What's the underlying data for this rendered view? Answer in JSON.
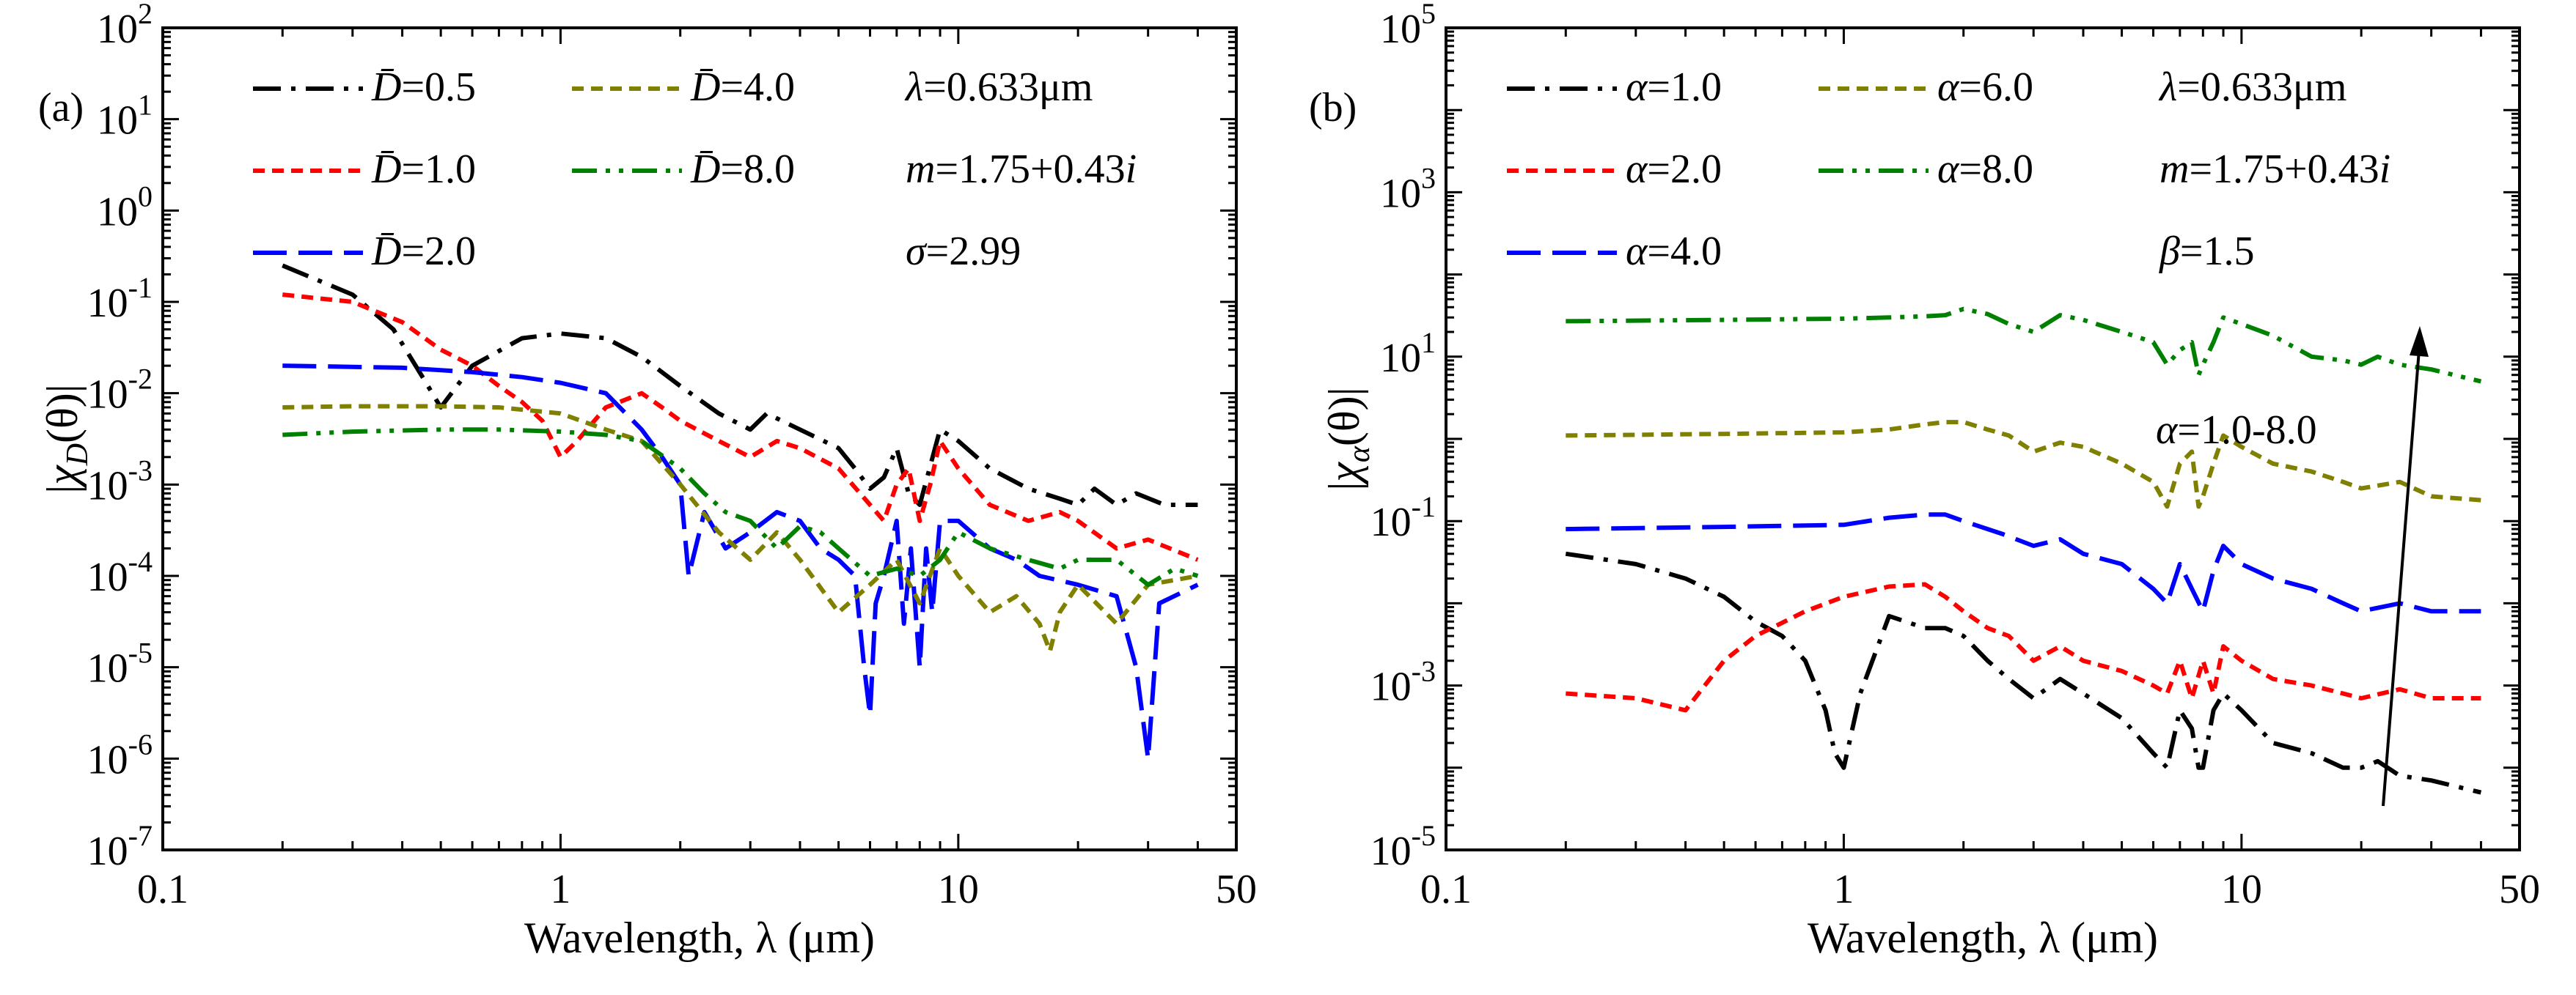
{
  "chart_data": [
    {
      "type": "line",
      "panel_label": "(a)",
      "xscale": "log",
      "yscale": "log",
      "xlim": [
        0.1,
        50
      ],
      "ylim": [
        1e-07,
        100
      ],
      "xticks": [
        0.1,
        1,
        10,
        50
      ],
      "xtick_labels": [
        "0.1",
        "1",
        "10",
        "50"
      ],
      "yticks": [
        1e-07,
        1e-06,
        1e-05,
        0.0001,
        0.001,
        0.01,
        0.1,
        1,
        10,
        100
      ],
      "ytick_exponents": [
        "-7",
        "-6",
        "-5",
        "-4",
        "-3",
        "-2",
        "-1",
        "0",
        "1",
        "2"
      ],
      "ytick_base": "10",
      "xlabel": "Wavelength, λ (μm)",
      "ylabel": {
        "bar_left": "|",
        "symbol": "χ",
        "subscript": "D",
        "arg": "(θ)",
        "bar_right": "|"
      },
      "legend": {
        "placement": "top-left",
        "columns": [
          [
            "D̄=0.5",
            "D̄=1.0",
            "D̄=2.0"
          ],
          [
            "D̄=4.0",
            "D̄=8.0"
          ]
        ]
      },
      "annotations": [
        "λ=0.633μm",
        "m=1.75+0.43i",
        "σ=2.99"
      ],
      "series": [
        {
          "name": "D̄=0.5",
          "color": "#000000",
          "dash": "dashdot",
          "x": [
            0.2,
            0.3,
            0.38,
            0.45,
            0.5,
            0.6,
            0.8,
            1.0,
            1.3,
            1.6,
            2.0,
            2.5,
            3.0,
            3.3,
            4.0,
            5.0,
            5.5,
            6.0,
            6.5,
            7.0,
            7.5,
            8.0,
            9.0,
            10.0,
            12,
            15,
            18,
            20,
            22,
            25,
            28,
            33,
            40
          ],
          "y": [
            0.25,
            0.12,
            0.05,
            0.015,
            0.007,
            0.02,
            0.04,
            0.045,
            0.04,
            0.025,
            0.012,
            0.006,
            0.004,
            0.006,
            0.004,
            0.0025,
            0.0015,
            0.0009,
            0.0012,
            0.0025,
            0.0008,
            0.0006,
            0.004,
            0.003,
            0.0015,
            0.0009,
            0.0007,
            0.0006,
            0.0009,
            0.0006,
            0.0008,
            0.0006,
            0.0006
          ]
        },
        {
          "name": "D̄=1.0",
          "color": "#ff0000",
          "dash": "dash",
          "x": [
            0.2,
            0.3,
            0.4,
            0.5,
            0.6,
            0.7,
            0.8,
            0.9,
            1.0,
            1.1,
            1.3,
            1.6,
            1.8,
            2.0,
            2.5,
            3.0,
            3.5,
            4.0,
            5.0,
            6.0,
            6.5,
            7.0,
            7.5,
            8.0,
            8.5,
            9.0,
            10.0,
            12,
            15,
            18,
            20,
            25,
            30,
            40
          ],
          "y": [
            0.12,
            0.1,
            0.06,
            0.03,
            0.02,
            0.012,
            0.008,
            0.005,
            0.002,
            0.003,
            0.007,
            0.01,
            0.007,
            0.005,
            0.003,
            0.002,
            0.003,
            0.0025,
            0.0015,
            0.0006,
            0.0004,
            0.001,
            0.0015,
            0.0004,
            0.001,
            0.003,
            0.0015,
            0.0006,
            0.0004,
            0.0005,
            0.0004,
            0.0002,
            0.00025,
            0.00015
          ]
        },
        {
          "name": "D̄=2.0",
          "color": "#0000ff",
          "dash": "longdash",
          "x": [
            0.2,
            0.4,
            0.6,
            0.8,
            1.0,
            1.3,
            1.6,
            1.8,
            2.0,
            2.1,
            2.3,
            2.6,
            3.0,
            3.5,
            4.0,
            4.5,
            5.0,
            5.5,
            5.8,
            6.0,
            6.2,
            6.5,
            7.0,
            7.3,
            7.6,
            8.0,
            8.3,
            8.6,
            9.0,
            10.0,
            12,
            14,
            16,
            20,
            25,
            28,
            30,
            32,
            40
          ],
          "y": [
            0.02,
            0.019,
            0.017,
            0.015,
            0.013,
            0.01,
            0.004,
            0.002,
            0.001,
            0.0001,
            0.0005,
            0.0002,
            0.0003,
            0.0005,
            0.0004,
            0.0002,
            0.00015,
            0.0001,
            1e-05,
            3e-06,
            5e-05,
            0.0001,
            0.0004,
            3e-05,
            0.0002,
            1e-05,
            0.0002,
            4e-05,
            0.0004,
            0.0004,
            0.0002,
            0.00015,
            0.0001,
            8e-05,
            6e-05,
            1e-05,
            1e-06,
            5e-05,
            8e-05
          ]
        },
        {
          "name": "D̄=4.0",
          "color": "#808000",
          "dash": "dash",
          "x": [
            0.2,
            0.3,
            0.5,
            0.7,
            1.0,
            1.3,
            1.6,
            2.0,
            2.5,
            3.0,
            3.5,
            4.0,
            5.0,
            6.0,
            7.0,
            8.0,
            9.0,
            10.0,
            12,
            14,
            16,
            17,
            18,
            20,
            25,
            30,
            40
          ],
          "y": [
            0.007,
            0.0072,
            0.0072,
            0.007,
            0.006,
            0.004,
            0.003,
            0.001,
            0.0003,
            0.00015,
            0.0003,
            0.00015,
            4e-05,
            8e-05,
            0.00015,
            5e-05,
            0.0002,
            0.0001,
            4e-05,
            6e-05,
            3e-05,
            1.5e-05,
            4e-05,
            8e-05,
            3e-05,
            8e-05,
            0.0001
          ]
        },
        {
          "name": "D̄=8.0",
          "color": "#008000",
          "dash": "dashdotdot",
          "x": [
            0.2,
            0.3,
            0.5,
            0.7,
            1.0,
            1.3,
            1.6,
            2.0,
            2.3,
            2.6,
            3.0,
            3.5,
            4.0,
            4.5,
            5.0,
            6.0,
            7.0,
            8.0,
            9.0,
            10.0,
            12,
            15,
            18,
            20,
            25,
            30,
            35,
            40
          ],
          "y": [
            0.0035,
            0.0038,
            0.004,
            0.004,
            0.0038,
            0.0035,
            0.003,
            0.0015,
            0.0008,
            0.0005,
            0.0004,
            0.0002,
            0.00035,
            0.0003,
            0.0002,
            0.0001,
            0.00012,
            0.0001,
            0.00015,
            0.0003,
            0.0002,
            0.00015,
            0.00012,
            0.00015,
            0.00015,
            8e-05,
            0.00012,
            0.0001
          ]
        }
      ]
    },
    {
      "type": "line",
      "panel_label": "(b)",
      "xscale": "log",
      "yscale": "log",
      "xlim": [
        0.1,
        50
      ],
      "ylim": [
        1e-05,
        100000
      ],
      "xticks": [
        0.1,
        1,
        10,
        50
      ],
      "xtick_labels": [
        "0.1",
        "1",
        "10",
        "50"
      ],
      "yticks": [
        1e-05,
        0.001,
        0.1,
        10,
        1000,
        100000
      ],
      "ytick_exponents": [
        "-5",
        "-3",
        "-1",
        "1",
        "3",
        "5"
      ],
      "ytick_base": "10",
      "xlabel": "Wavelength, λ (μm)",
      "ylabel": {
        "bar_left": "|",
        "symbol": "χ",
        "subscript": "α",
        "arg": "(θ)",
        "bar_right": "|"
      },
      "legend": {
        "placement": "top-left",
        "columns": [
          [
            "α=1.0",
            "α=2.0",
            "α=4.0"
          ],
          [
            "α=6.0",
            "α=8.0"
          ]
        ]
      },
      "annotations": [
        "λ=0.633μm",
        "m=1.75+0.43i",
        "β=1.5",
        "α=1.0-8.0"
      ],
      "series": [
        {
          "name": "α=1.0",
          "color": "#000000",
          "dash": "dashdot",
          "x": [
            0.2,
            0.3,
            0.4,
            0.5,
            0.6,
            0.7,
            0.8,
            0.9,
            0.95,
            1.0,
            1.1,
            1.3,
            1.6,
            1.8,
            2.0,
            2.3,
            2.6,
            3.0,
            3.5,
            4.0,
            5.0,
            6.0,
            6.5,
            7.0,
            7.5,
            7.8,
            8.0,
            8.5,
            9.0,
            10.0,
            12,
            15,
            18,
            20,
            22,
            25,
            30,
            40
          ],
          "y": [
            0.04,
            0.03,
            0.02,
            0.012,
            0.006,
            0.004,
            0.002,
            0.0005,
            0.00015,
            0.0001,
            0.0008,
            0.007,
            0.005,
            0.005,
            0.004,
            0.002,
            0.0012,
            0.0007,
            0.0012,
            0.0008,
            0.0004,
            0.00015,
            0.0001,
            0.0005,
            0.0003,
            0.0001,
            0.0001,
            0.0005,
            0.0008,
            0.0005,
            0.0002,
            0.00015,
            0.0001,
            0.0001,
            0.00012,
            8e-05,
            7e-05,
            5e-05
          ]
        },
        {
          "name": "α=2.0",
          "color": "#ff0000",
          "dash": "dash",
          "x": [
            0.2,
            0.3,
            0.4,
            0.5,
            0.6,
            0.8,
            1.0,
            1.3,
            1.6,
            1.8,
            2.0,
            2.3,
            2.6,
            3.0,
            3.5,
            4.0,
            5.0,
            6.0,
            6.5,
            7.0,
            7.5,
            8.0,
            8.5,
            9.0,
            10.0,
            12,
            15,
            18,
            20,
            25,
            30,
            40
          ],
          "y": [
            0.0008,
            0.0007,
            0.0005,
            0.002,
            0.004,
            0.008,
            0.012,
            0.016,
            0.017,
            0.012,
            0.008,
            0.005,
            0.004,
            0.002,
            0.003,
            0.002,
            0.0015,
            0.001,
            0.0008,
            0.002,
            0.0007,
            0.002,
            0.0008,
            0.003,
            0.002,
            0.0012,
            0.001,
            0.0008,
            0.0007,
            0.0009,
            0.0007,
            0.0007
          ]
        },
        {
          "name": "α=4.0",
          "color": "#0000ff",
          "dash": "longdash",
          "x": [
            0.2,
            0.5,
            1.0,
            1.3,
            1.6,
            1.8,
            2.0,
            2.5,
            3.0,
            3.5,
            4.0,
            5.0,
            6.0,
            6.5,
            7.0,
            7.5,
            8.0,
            8.5,
            9.0,
            10.0,
            12,
            15,
            18,
            20,
            25,
            30,
            40
          ],
          "y": [
            0.08,
            0.085,
            0.09,
            0.11,
            0.12,
            0.12,
            0.1,
            0.07,
            0.05,
            0.06,
            0.04,
            0.03,
            0.015,
            0.01,
            0.03,
            0.015,
            0.008,
            0.025,
            0.05,
            0.03,
            0.02,
            0.015,
            0.01,
            0.008,
            0.01,
            0.008,
            0.008
          ]
        },
        {
          "name": "α=6.0",
          "color": "#808000",
          "dash": "dash",
          "x": [
            0.2,
            0.5,
            1.0,
            1.3,
            1.6,
            1.8,
            2.0,
            2.3,
            2.6,
            3.0,
            3.5,
            4.0,
            5.0,
            6.0,
            6.5,
            7.0,
            7.5,
            7.8,
            8.0,
            8.5,
            9.0,
            10.0,
            12,
            15,
            18,
            20,
            25,
            30,
            40
          ],
          "y": [
            1.1,
            1.15,
            1.2,
            1.3,
            1.5,
            1.6,
            1.6,
            1.3,
            1.1,
            0.7,
            0.9,
            0.8,
            0.5,
            0.3,
            0.15,
            0.5,
            0.7,
            0.15,
            0.2,
            0.5,
            1.1,
            0.8,
            0.5,
            0.4,
            0.3,
            0.25,
            0.3,
            0.2,
            0.18
          ]
        },
        {
          "name": "α=8.0",
          "color": "#008000",
          "dash": "dashdotdot",
          "x": [
            0.2,
            0.5,
            1.0,
            1.3,
            1.6,
            1.8,
            2.0,
            2.3,
            2.6,
            3.0,
            3.5,
            4.0,
            5.0,
            6.0,
            6.5,
            7.0,
            7.5,
            7.8,
            8.0,
            8.5,
            9.0,
            10.0,
            12,
            15,
            18,
            20,
            22,
            25,
            30,
            40
          ],
          "y": [
            27,
            28,
            29,
            30,
            31,
            32,
            38,
            33,
            25,
            20,
            32,
            28,
            20,
            15,
            8,
            12,
            15,
            6,
            8,
            15,
            30,
            25,
            18,
            10,
            9,
            8,
            10,
            8,
            7,
            5
          ]
        }
      ]
    }
  ]
}
